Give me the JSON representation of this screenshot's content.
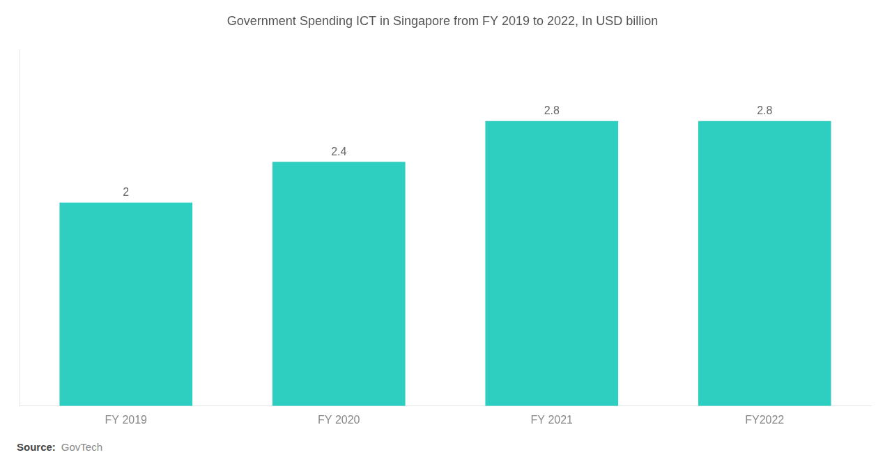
{
  "chart_data": {
    "type": "bar",
    "title": "Government Spending ICT in Singapore from FY 2019 to 2022, In USD billion",
    "categories": [
      "FY 2019",
      "FY 2020",
      "FY 2021",
      "FY2022"
    ],
    "values": [
      2.0,
      2.4,
      2.8,
      2.8
    ],
    "value_labels": [
      "2",
      "2.4",
      "2.8",
      "2.8"
    ],
    "data_labels": true,
    "color": "#2ECEC0",
    "ylim": [
      0,
      3.5
    ],
    "tick_labels": "x",
    "grid": false,
    "annotations": [
      "Source:",
      "GovTech"
    ]
  }
}
